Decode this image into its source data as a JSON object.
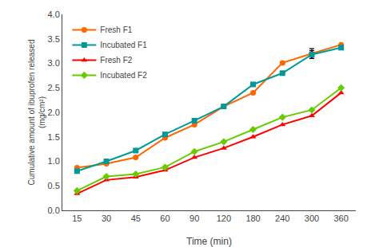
{
  "chart_data": {
    "type": "line",
    "categories": [
      "15",
      "30",
      "45",
      "60",
      "90",
      "120",
      "180",
      "240",
      "300",
      "360"
    ],
    "xlabel": "Time (min)",
    "ylabel": "Cumulative amount of ibuprofen released\n(mg/cm²)",
    "series": [
      {
        "name": "Fresh F1",
        "color": "#FF6600",
        "marker": "circle",
        "values": [
          0.87,
          0.95,
          1.08,
          1.48,
          1.75,
          2.12,
          2.4,
          3.01,
          3.2,
          3.38
        ],
        "errors": [
          0,
          0,
          0,
          0,
          0,
          0,
          0,
          0,
          0.1,
          0
        ]
      },
      {
        "name": "Incubated F1",
        "color": "#009999",
        "marker": "square",
        "values": [
          0.8,
          1.0,
          1.22,
          1.55,
          1.83,
          2.12,
          2.57,
          2.8,
          3.18,
          3.32
        ],
        "errors": [
          0,
          0,
          0,
          0,
          0,
          0,
          0,
          0,
          0.08,
          0
        ]
      },
      {
        "name": "Fresh F2",
        "color": "#FF0000",
        "marker": "triangle",
        "values": [
          0.34,
          0.62,
          0.68,
          0.82,
          1.08,
          1.27,
          1.5,
          1.75,
          1.93,
          2.4
        ]
      },
      {
        "name": "Incubated F2",
        "color": "#66CC00",
        "marker": "diamond",
        "values": [
          0.4,
          0.69,
          0.74,
          0.88,
          1.2,
          1.4,
          1.65,
          1.9,
          2.05,
          2.5
        ]
      }
    ],
    "ylim": [
      0,
      4.0
    ],
    "yticks": [
      {
        "value": 0,
        "label": "0.0"
      },
      0.5,
      {
        "value": 1.0,
        "label": "1.0"
      },
      1.5,
      {
        "value": 2.0,
        "label": "2.0"
      },
      2.5,
      {
        "value": 3.0,
        "label": "3.0"
      },
      3.5,
      {
        "value": 4.0,
        "label": "4.0"
      }
    ],
    "grid": false,
    "legend": "upper left"
  }
}
